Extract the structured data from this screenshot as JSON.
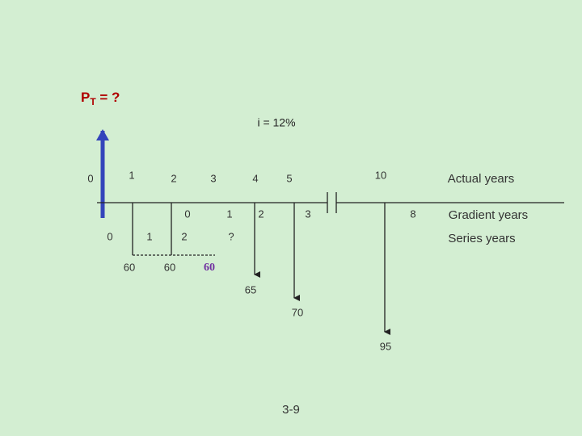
{
  "present_worth": {
    "symbol": "P",
    "subscript": "T",
    "suffix": " = ?"
  },
  "interest": "i = 12%",
  "actual_years": {
    "labels": [
      "0",
      "1",
      "2",
      "3",
      "4",
      "5",
      "10"
    ],
    "caption": "Actual years"
  },
  "gradient_years": {
    "labels": [
      "0",
      "1",
      "2",
      "3",
      "8"
    ],
    "caption": "Gradient years"
  },
  "series_years": {
    "labels": [
      "0",
      "1",
      "2",
      "?"
    ],
    "caption": "Series years"
  },
  "cash_flows": [
    "60",
    "60",
    "60",
    "65",
    "70",
    "95"
  ],
  "page_number": "3-9"
}
